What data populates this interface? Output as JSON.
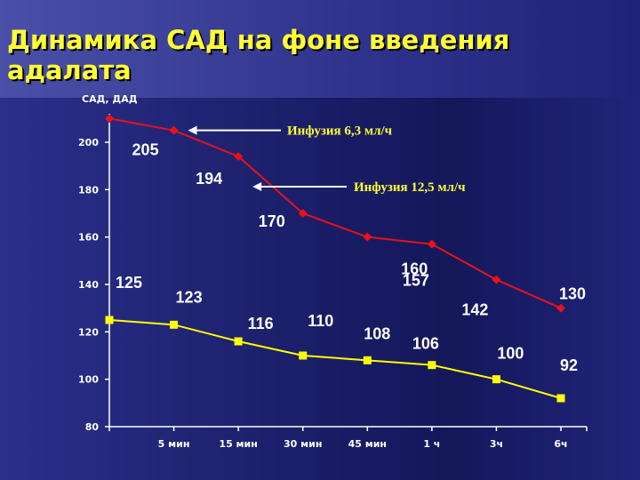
{
  "slide": {
    "title": "Динамика САД на фоне введения адалата"
  },
  "colors": {
    "sad": "#e8121a",
    "dad": "#ffff00",
    "title": "#ffff33",
    "annotation": "#ffff33"
  },
  "chart_data": {
    "type": "line",
    "title": "",
    "ylabel": "САД, ДАД",
    "xlabel": "",
    "ylim": [
      80,
      210
    ],
    "yticks": [
      80,
      100,
      120,
      140,
      160,
      180,
      200
    ],
    "categories": [
      "",
      "5 мин",
      "15 мин",
      "30 мин",
      "45 мин",
      "1 ч",
      "3ч",
      "6ч"
    ],
    "grid": false,
    "legend": "none",
    "series": [
      {
        "key": "sad",
        "values": [
          210,
          205,
          194,
          170,
          160,
          157,
          142,
          130
        ],
        "labels": [
          "",
          "205",
          "194",
          "170",
          "160",
          "157",
          "142",
          "130"
        ]
      },
      {
        "key": "dad",
        "values": [
          125,
          123,
          116,
          110,
          108,
          106,
          100,
          92
        ],
        "labels": [
          "125",
          "123",
          "116",
          "110",
          "108",
          "106",
          "100",
          "92"
        ]
      }
    ],
    "annotations": [
      {
        "text": "Инфузия 6,3 мл/ч",
        "target_index": 1,
        "target_series": "sad"
      },
      {
        "text": "Инфузия 12,5 мл/ч",
        "target_index": 2,
        "target_series": "sad"
      }
    ]
  }
}
